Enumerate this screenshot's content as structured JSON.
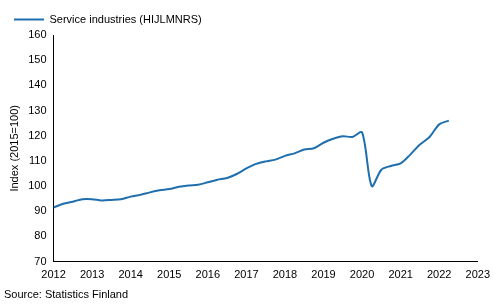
{
  "chart_data": {
    "type": "line",
    "y_label": "Index (2015=100)",
    "source": "Source: Statistics Finland",
    "x": [
      2012.0,
      2012.25,
      2012.5,
      2012.75,
      2013.0,
      2013.25,
      2013.5,
      2013.75,
      2014.0,
      2014.25,
      2014.5,
      2014.75,
      2015.0,
      2015.25,
      2015.5,
      2015.75,
      2016.0,
      2016.25,
      2016.5,
      2016.75,
      2017.0,
      2017.25,
      2017.5,
      2017.75,
      2018.0,
      2018.25,
      2018.5,
      2018.75,
      2019.0,
      2019.25,
      2019.5,
      2019.75,
      2020.0,
      2020.25,
      2020.5,
      2020.75,
      2021.0,
      2021.25,
      2021.5,
      2021.75,
      2022.0,
      2022.25
    ],
    "series": [
      {
        "name": "Service industries (HIJLMNRS)",
        "color": "#1f6fae",
        "values": [
          91.5,
          93,
          93.8,
          94.8,
          94.8,
          94.3,
          94.5,
          94.8,
          95.8,
          96.5,
          97.5,
          98.3,
          98.8,
          99.7,
          100.2,
          100.5,
          101.5,
          102.5,
          103.2,
          104.8,
          107,
          108.8,
          109.8,
          110.5,
          112,
          113,
          114.5,
          115,
          117.2,
          118.8,
          119.8,
          119.5,
          121.3,
          100,
          106.5,
          108,
          109,
          112.5,
          116.5,
          119.5,
          124.5,
          126
        ]
      }
    ],
    "xlim": [
      2012,
      2023
    ],
    "xticks": [
      2012,
      2013,
      2014,
      2015,
      2016,
      2017,
      2018,
      2019,
      2020,
      2021,
      2022,
      2023
    ],
    "ylim": [
      70,
      160
    ],
    "yticks": [
      70,
      80,
      90,
      100,
      110,
      120,
      130,
      140,
      150,
      160
    ],
    "grid": false,
    "legend": "upper left",
    "marker": "none",
    "line_style": "solid"
  }
}
